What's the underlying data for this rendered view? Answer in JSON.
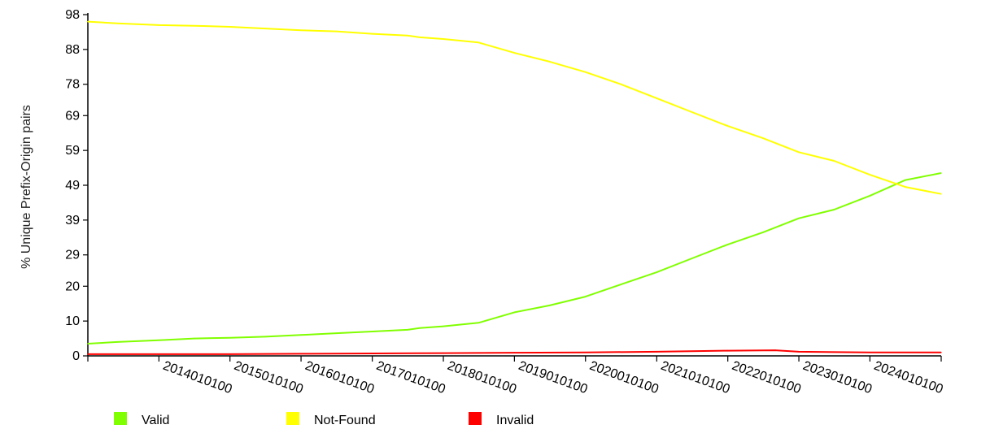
{
  "chart_data": {
    "type": "line",
    "ylabel": "% Unique Prefix-Origin pairs",
    "xlabel": "",
    "title": "",
    "ylim": [
      0,
      98
    ],
    "y_ticks": [
      "0",
      "10",
      "20",
      "29",
      "39",
      "49",
      "59",
      "69",
      "78",
      "88",
      "98"
    ],
    "x_ticks": [
      "2014010100",
      "2015010100",
      "2016010100",
      "2017010100",
      "2018010100",
      "2019010100",
      "2020010100",
      "2021010100",
      "2022010100",
      "2023010100",
      "2024010100"
    ],
    "x_range": [
      "2013-01-01",
      "2025-01-01"
    ],
    "grid": false,
    "legend_position": "bottom",
    "series": [
      {
        "name": "Valid",
        "color": "#80ff00",
        "x": [
          "2013-01-01",
          "2013-06-01",
          "2014-01-01",
          "2014-07-01",
          "2015-01-01",
          "2015-07-01",
          "2016-01-01",
          "2016-07-01",
          "2017-01-01",
          "2017-07-01",
          "2017-09-01",
          "2018-01-01",
          "2018-07-01",
          "2019-01-01",
          "2019-07-01",
          "2020-01-01",
          "2020-07-01",
          "2021-01-01",
          "2021-07-01",
          "2022-01-01",
          "2022-07-01",
          "2023-01-01",
          "2023-07-01",
          "2024-01-01",
          "2024-07-01",
          "2024-12-31"
        ],
        "values": [
          3.5,
          4.0,
          4.5,
          5.0,
          5.2,
          5.5,
          6.0,
          6.5,
          7.0,
          7.5,
          8.0,
          8.5,
          9.5,
          12.5,
          14.5,
          17.0,
          20.5,
          24.0,
          28.0,
          32.0,
          35.5,
          39.5,
          42.0,
          46.0,
          50.5,
          52.5
        ]
      },
      {
        "name": "Not-Found",
        "color": "#ffff00",
        "x": [
          "2013-01-01",
          "2013-06-01",
          "2014-01-01",
          "2014-07-01",
          "2015-01-01",
          "2015-07-01",
          "2016-01-01",
          "2016-07-01",
          "2017-01-01",
          "2017-07-01",
          "2017-09-01",
          "2018-01-01",
          "2018-07-01",
          "2019-01-01",
          "2019-07-01",
          "2020-01-01",
          "2020-07-01",
          "2021-01-01",
          "2021-07-01",
          "2022-01-01",
          "2022-07-01",
          "2023-01-01",
          "2023-07-01",
          "2024-01-01",
          "2024-07-01",
          "2024-12-31"
        ],
        "values": [
          96.0,
          95.5,
          95.0,
          94.8,
          94.5,
          94.0,
          93.5,
          93.2,
          92.5,
          92.0,
          91.5,
          91.0,
          90.0,
          87.0,
          84.5,
          81.5,
          78.0,
          74.0,
          70.0,
          66.0,
          62.5,
          58.5,
          56.0,
          52.0,
          48.5,
          46.5
        ]
      },
      {
        "name": "Invalid",
        "color": "#ff0000",
        "x": [
          "2013-01-01",
          "2014-01-01",
          "2015-01-01",
          "2016-01-01",
          "2017-01-01",
          "2018-01-01",
          "2019-01-01",
          "2020-01-01",
          "2021-01-01",
          "2022-01-01",
          "2022-09-01",
          "2023-01-01",
          "2024-01-01",
          "2024-12-31"
        ],
        "values": [
          0.5,
          0.5,
          0.5,
          0.6,
          0.7,
          0.8,
          0.9,
          1.0,
          1.2,
          1.5,
          1.6,
          1.2,
          1.0,
          1.0
        ]
      }
    ]
  }
}
